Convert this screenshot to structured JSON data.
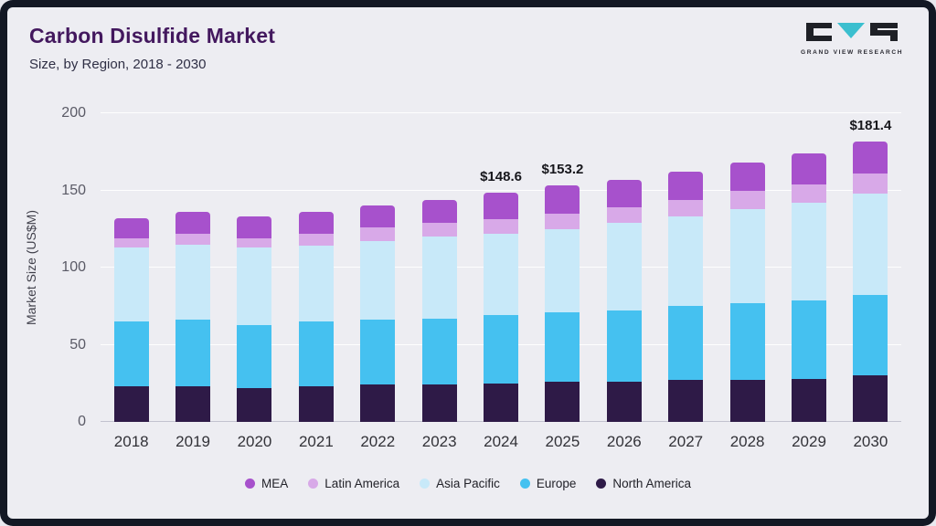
{
  "header": {
    "title": "Carbon Disulfide Market",
    "subtitle": "Size, by Region, 2018 - 2030"
  },
  "logo": {
    "text": "GRAND VIEW RESEARCH",
    "accent_color": "#3bbfcf",
    "mark_color": "#1e2026"
  },
  "chart_data": {
    "type": "bar",
    "stacked": true,
    "title": "Carbon Disulfide Market Size, by Region, 2018 - 2030",
    "xlabel": "",
    "ylabel": "Market Size (US$M)",
    "ylim": [
      0,
      200
    ],
    "yticks": [
      0,
      50,
      100,
      150,
      200
    ],
    "grid": true,
    "legend_position": "bottom",
    "categories": [
      "2018",
      "2019",
      "2020",
      "2021",
      "2022",
      "2023",
      "2024",
      "2025",
      "2026",
      "2027",
      "2028",
      "2029",
      "2030"
    ],
    "series": [
      {
        "name": "North America",
        "color": "#2e1a47",
        "values": [
          23,
          23,
          22,
          23,
          24,
          24,
          25,
          26,
          26,
          27,
          27,
          28,
          30
        ]
      },
      {
        "name": "Europe",
        "color": "#45c1f0",
        "values": [
          42,
          43,
          41,
          42,
          42,
          43,
          44,
          45,
          46,
          48,
          50,
          51,
          52
        ]
      },
      {
        "name": "Asia Pacific",
        "color": "#c8e9f9",
        "values": [
          48,
          49,
          50,
          49,
          51,
          53,
          53,
          54,
          57,
          58,
          61,
          63,
          66
        ]
      },
      {
        "name": "Latin America",
        "color": "#d8a9e8",
        "values": [
          6,
          7,
          6,
          8,
          9,
          9,
          9.6,
          10,
          10,
          11,
          12,
          12,
          13
        ]
      },
      {
        "name": "MEA",
        "color": "#a751cc",
        "values": [
          13,
          14,
          14,
          14,
          14,
          15,
          17,
          18.2,
          18,
          18,
          18,
          20,
          20.4
        ]
      }
    ],
    "totals": [
      132,
      136,
      133,
      136,
      140,
      144,
      148.6,
      153.2,
      157,
      162,
      168,
      174,
      181.4
    ],
    "annotations": [
      {
        "category": "2024",
        "label": "$148.6"
      },
      {
        "category": "2025",
        "label": "$153.2"
      },
      {
        "category": "2030",
        "label": "$181.4"
      }
    ],
    "legend": [
      "MEA",
      "Latin America",
      "Asia Pacific",
      "Europe",
      "North America"
    ]
  }
}
